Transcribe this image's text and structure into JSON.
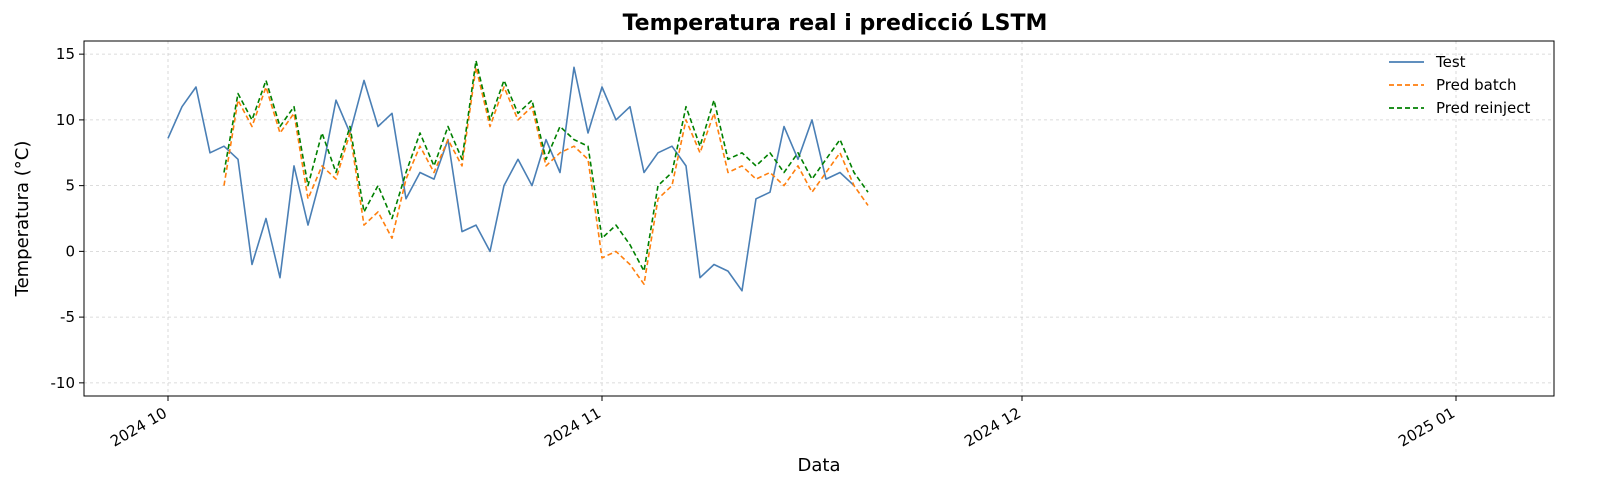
{
  "chart_data": {
    "type": "line",
    "title": "Temperatura real i predicció LSTM",
    "xlabel": "Data",
    "ylabel": "Temperatura (°C)",
    "xlim": [
      "2024-09-25",
      "2025-01-08"
    ],
    "ylim": [
      -11,
      16
    ],
    "grid": true,
    "legend_position": "top-right",
    "x_ticks": [
      {
        "date": "2024-10-01",
        "label": "2024 10"
      },
      {
        "date": "2024-11-01",
        "label": "2024 11"
      },
      {
        "date": "2024-12-01",
        "label": "2024 12"
      },
      {
        "date": "2025-01-01",
        "label": "2025 01"
      }
    ],
    "y_ticks": [
      -10,
      -5,
      0,
      5,
      10,
      15
    ],
    "series": [
      {
        "name": "Test",
        "color": "#4a7fb5",
        "style": "solid",
        "points": [
          [
            "2024-10-01",
            8.6
          ],
          [
            "2024-10-02",
            11.0
          ],
          [
            "2024-10-03",
            12.5
          ],
          [
            "2024-10-04",
            7.5
          ],
          [
            "2024-10-05",
            8.0
          ],
          [
            "2024-10-06",
            7.0
          ],
          [
            "2024-10-07",
            -1.0
          ],
          [
            "2024-10-08",
            2.5
          ],
          [
            "2024-10-09",
            -2.0
          ],
          [
            "2024-10-10",
            6.5
          ],
          [
            "2024-10-11",
            2.0
          ],
          [
            "2024-10-12",
            6.0
          ],
          [
            "2024-10-13",
            11.5
          ],
          [
            "2024-10-14",
            9.0
          ],
          [
            "2024-10-15",
            13.0
          ],
          [
            "2024-10-16",
            9.5
          ],
          [
            "2024-10-17",
            10.5
          ],
          [
            "2024-10-18",
            4.0
          ],
          [
            "2024-10-19",
            6.0
          ],
          [
            "2024-10-20",
            5.5
          ],
          [
            "2024-10-21",
            8.5
          ],
          [
            "2024-10-22",
            1.5
          ],
          [
            "2024-10-23",
            2.0
          ],
          [
            "2024-10-24",
            0.0
          ],
          [
            "2024-10-25",
            5.0
          ],
          [
            "2024-10-26",
            7.0
          ],
          [
            "2024-10-27",
            5.0
          ],
          [
            "2024-10-28",
            8.5
          ],
          [
            "2024-10-29",
            6.0
          ],
          [
            "2024-10-30",
            14.0
          ],
          [
            "2024-10-31",
            9.0
          ],
          [
            "2024-11-01",
            12.5
          ],
          [
            "2024-11-02",
            10.0
          ],
          [
            "2024-11-03",
            11.0
          ],
          [
            "2024-11-04",
            6.0
          ],
          [
            "2024-11-05",
            7.5
          ],
          [
            "2024-11-06",
            8.0
          ],
          [
            "2024-11-07",
            6.5
          ],
          [
            "2024-11-08",
            -2.0
          ],
          [
            "2024-11-09",
            -1.0
          ],
          [
            "2024-11-10",
            -1.5
          ],
          [
            "2024-11-11",
            -3.0
          ],
          [
            "2024-11-12",
            4.0
          ],
          [
            "2024-11-13",
            4.5
          ],
          [
            "2024-11-14",
            9.5
          ],
          [
            "2024-11-15",
            7.0
          ],
          [
            "2024-11-16",
            10.0
          ],
          [
            "2024-11-17",
            5.5
          ],
          [
            "2024-11-18",
            6.0
          ],
          [
            "2024-11-19",
            5.0
          ]
        ]
      },
      {
        "name": "Pred batch",
        "color": "#ff7f0e",
        "style": "dashed",
        "points": [
          [
            "2024-10-05",
            5.0
          ],
          [
            "2024-10-06",
            11.5
          ],
          [
            "2024-10-07",
            9.5
          ],
          [
            "2024-10-08",
            12.5
          ],
          [
            "2024-10-09",
            9.0
          ],
          [
            "2024-10-10",
            10.5
          ],
          [
            "2024-10-11",
            4.0
          ],
          [
            "2024-10-12",
            6.5
          ],
          [
            "2024-10-13",
            5.5
          ],
          [
            "2024-10-14",
            9.0
          ],
          [
            "2024-10-15",
            2.0
          ],
          [
            "2024-10-16",
            3.0
          ],
          [
            "2024-10-17",
            1.0
          ],
          [
            "2024-10-18",
            5.5
          ],
          [
            "2024-10-19",
            8.0
          ],
          [
            "2024-10-20",
            6.0
          ],
          [
            "2024-10-21",
            8.5
          ],
          [
            "2024-10-22",
            6.5
          ],
          [
            "2024-10-23",
            14.0
          ],
          [
            "2024-10-24",
            9.5
          ],
          [
            "2024-10-25",
            12.5
          ],
          [
            "2024-10-26",
            10.0
          ],
          [
            "2024-10-27",
            11.0
          ],
          [
            "2024-10-28",
            6.5
          ],
          [
            "2024-10-29",
            7.5
          ],
          [
            "2024-10-30",
            8.0
          ],
          [
            "2024-10-31",
            7.0
          ],
          [
            "2024-11-01",
            -0.5
          ],
          [
            "2024-11-02",
            0.0
          ],
          [
            "2024-11-03",
            -1.0
          ],
          [
            "2024-11-04",
            -2.5
          ],
          [
            "2024-11-05",
            4.0
          ],
          [
            "2024-11-06",
            5.0
          ],
          [
            "2024-11-07",
            10.0
          ],
          [
            "2024-11-08",
            7.5
          ],
          [
            "2024-11-09",
            10.5
          ],
          [
            "2024-11-10",
            6.0
          ],
          [
            "2024-11-11",
            6.5
          ],
          [
            "2024-11-12",
            5.5
          ],
          [
            "2024-11-13",
            6.0
          ],
          [
            "2024-11-14",
            5.0
          ],
          [
            "2024-11-15",
            6.5
          ],
          [
            "2024-11-16",
            4.5
          ],
          [
            "2024-11-17",
            6.0
          ],
          [
            "2024-11-18",
            7.5
          ],
          [
            "2024-11-19",
            5.0
          ],
          [
            "2024-11-20",
            3.5
          ]
        ]
      },
      {
        "name": "Pred reinject",
        "color": "#008000",
        "style": "dashed",
        "points": [
          [
            "2024-10-05",
            6.0
          ],
          [
            "2024-10-06",
            12.0
          ],
          [
            "2024-10-07",
            10.0
          ],
          [
            "2024-10-08",
            13.0
          ],
          [
            "2024-10-09",
            9.5
          ],
          [
            "2024-10-10",
            11.0
          ],
          [
            "2024-10-11",
            5.0
          ],
          [
            "2024-10-12",
            9.0
          ],
          [
            "2024-10-13",
            6.0
          ],
          [
            "2024-10-14",
            9.5
          ],
          [
            "2024-10-15",
            3.0
          ],
          [
            "2024-10-16",
            5.0
          ],
          [
            "2024-10-17",
            2.5
          ],
          [
            "2024-10-18",
            6.0
          ],
          [
            "2024-10-19",
            9.0
          ],
          [
            "2024-10-20",
            6.5
          ],
          [
            "2024-10-21",
            9.5
          ],
          [
            "2024-10-22",
            7.0
          ],
          [
            "2024-10-23",
            14.5
          ],
          [
            "2024-10-24",
            10.0
          ],
          [
            "2024-10-25",
            13.0
          ],
          [
            "2024-10-26",
            10.5
          ],
          [
            "2024-10-27",
            11.5
          ],
          [
            "2024-10-28",
            7.0
          ],
          [
            "2024-10-29",
            9.5
          ],
          [
            "2024-10-30",
            8.5
          ],
          [
            "2024-10-31",
            8.0
          ],
          [
            "2024-11-01",
            1.0
          ],
          [
            "2024-11-02",
            2.0
          ],
          [
            "2024-11-03",
            0.5
          ],
          [
            "2024-11-04",
            -1.5
          ],
          [
            "2024-11-05",
            5.0
          ],
          [
            "2024-11-06",
            6.0
          ],
          [
            "2024-11-07",
            11.0
          ],
          [
            "2024-11-08",
            8.0
          ],
          [
            "2024-11-09",
            11.5
          ],
          [
            "2024-11-10",
            7.0
          ],
          [
            "2024-11-11",
            7.5
          ],
          [
            "2024-11-12",
            6.5
          ],
          [
            "2024-11-13",
            7.5
          ],
          [
            "2024-11-14",
            6.0
          ],
          [
            "2024-11-15",
            7.5
          ],
          [
            "2024-11-16",
            5.5
          ],
          [
            "2024-11-17",
            7.0
          ],
          [
            "2024-11-18",
            8.5
          ],
          [
            "2024-11-19",
            6.0
          ],
          [
            "2024-11-20",
            4.5
          ]
        ]
      }
    ]
  }
}
